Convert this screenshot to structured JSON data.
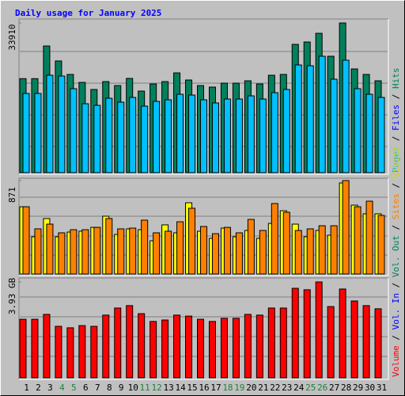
{
  "chart_data": [
    {
      "type": "bar",
      "title": "Daily usage for January 2025",
      "ylim": [
        0,
        33910
      ],
      "yticks": [
        33910
      ],
      "series": [
        {
          "color": "#00805c",
          "values": [
            21300,
            21300,
            28700,
            25300,
            22250,
            20450,
            18840,
            20630,
            19730,
            21350,
            18480,
            20090,
            20630,
            22600,
            20990,
            19730,
            19380,
            20270,
            20270,
            20810,
            20090,
            22070,
            22250,
            29060,
            29600,
            31570,
            26370,
            33910,
            23500,
            22250,
            20810
          ]
        },
        {
          "color": "#00c0ff",
          "values": [
            17940,
            17940,
            22070,
            21890,
            19020,
            15610,
            15250,
            16860,
            15970,
            17040,
            15070,
            16150,
            16500,
            17760,
            17580,
            16500,
            15790,
            16680,
            16680,
            17400,
            16680,
            18120,
            18840,
            24400,
            24220,
            26370,
            21170,
            25470,
            19020,
            17760,
            17040
          ]
        }
      ],
      "legend": [
        {
          "label": "Pages",
          "color": "#00c0ff"
        },
        {
          "label": "Files",
          "color": "#0000ff"
        },
        {
          "label": "Hits",
          "color": "#00805c"
        }
      ],
      "legend_separator": " / "
    },
    {
      "type": "bar",
      "ylim": [
        0,
        871
      ],
      "yticks": [
        871
      ],
      "series": [
        {
          "color": "#ffff00",
          "values": [
            627,
            347,
            517,
            347,
            391,
            399,
            435,
            539,
            369,
            421,
            413,
            310,
            458,
            384,
            664,
            399,
            332,
            428,
            347,
            406,
            332,
            472,
            590,
            465,
            347,
            406,
            362,
            849,
            642,
            561,
            561
          ]
        },
        {
          "color": "#ff8000",
          "values": [
            627,
            421,
            465,
            384,
            413,
            413,
            435,
            517,
            421,
            428,
            502,
            384,
            399,
            487,
            613,
            443,
            376,
            435,
            384,
            509,
            406,
            657,
            576,
            406,
            421,
            450,
            450,
            871,
            627,
            679,
            546
          ]
        }
      ]
    },
    {
      "type": "bar",
      "ylim": [
        0,
        3.93
      ],
      "yticks": [
        {
          "value": 3.93,
          "label": "3.93 GB"
        }
      ],
      "series": [
        {
          "color": "#ff0000",
          "values": [
            2.4,
            2.4,
            2.6,
            2.11,
            2.05,
            2.14,
            2.11,
            2.57,
            2.86,
            2.96,
            2.63,
            2.31,
            2.37,
            2.57,
            2.53,
            2.4,
            2.31,
            2.44,
            2.44,
            2.6,
            2.57,
            2.86,
            2.86,
            3.67,
            3.61,
            3.93,
            2.92,
            3.64,
            3.15,
            2.96,
            2.83
          ]
        }
      ],
      "categories": [
        "1",
        "2",
        "3",
        "4",
        "5",
        "6",
        "7",
        "8",
        "9",
        "10",
        "11",
        "12",
        "13",
        "14",
        "15",
        "16",
        "17",
        "18",
        "19",
        "20",
        "21",
        "22",
        "23",
        "24",
        "25",
        "26",
        "27",
        "28",
        "29",
        "30",
        "31"
      ],
      "weekends": [
        3,
        4,
        10,
        11,
        17,
        18,
        24,
        25
      ],
      "weekend_color": "#208040",
      "legend": [
        {
          "label": "Volume",
          "color": "#ff0000"
        },
        {
          "label": "Vol. In",
          "color": "#0000ff"
        },
        {
          "label": "Vol. Out",
          "color": "#00805c"
        },
        {
          "label": "Sites",
          "color": "#ff8000"
        },
        {
          "label": "Visits",
          "color": "#d8d800"
        }
      ],
      "legend_separator": " / "
    }
  ]
}
